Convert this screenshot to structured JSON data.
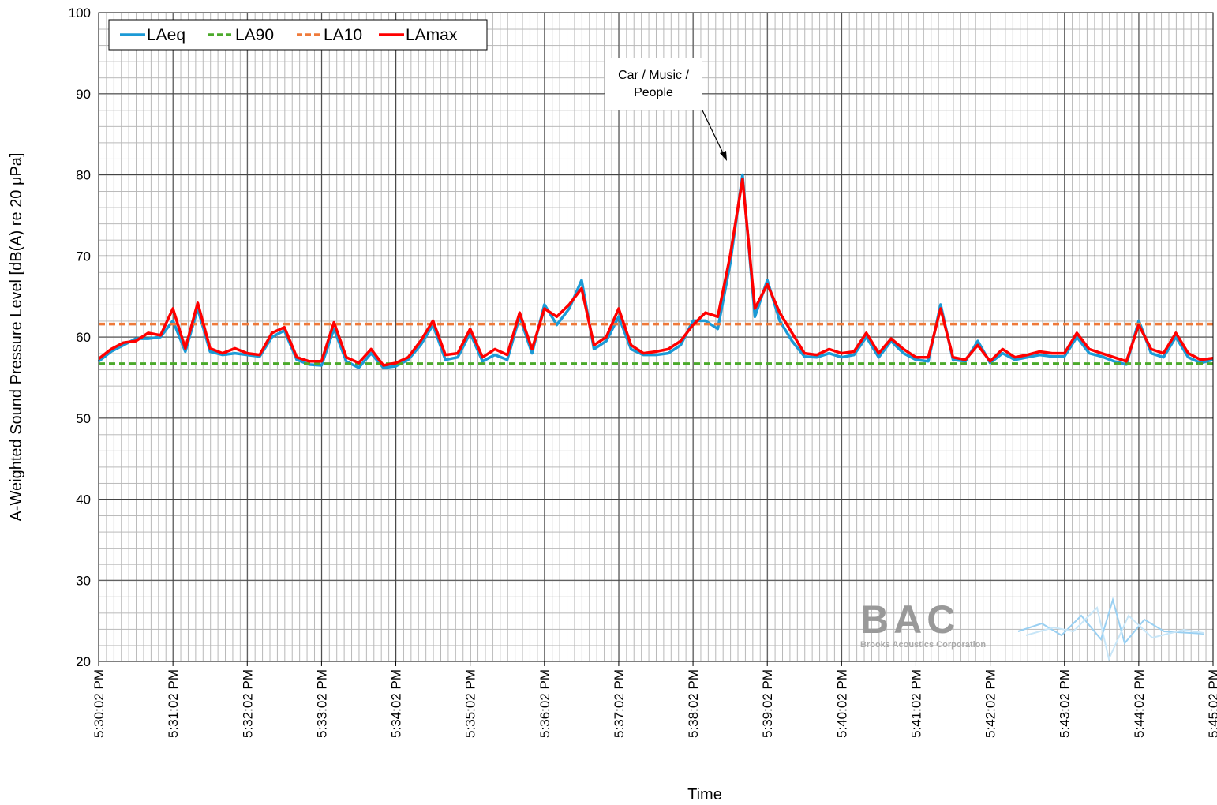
{
  "chart_data": {
    "type": "line",
    "xlabel": "Time",
    "ylabel": "A-Weighted Sound Pressure Level [dB(A) re 20 μPa]",
    "x": [
      "5:30:02 PM",
      "5:30:12 PM",
      "5:30:22 PM",
      "5:30:32 PM",
      "5:30:42 PM",
      "5:30:52 PM",
      "5:31:02 PM",
      "5:31:12 PM",
      "5:31:22 PM",
      "5:31:32 PM",
      "5:31:42 PM",
      "5:31:52 PM",
      "5:32:02 PM",
      "5:32:12 PM",
      "5:32:22 PM",
      "5:32:32 PM",
      "5:32:42 PM",
      "5:32:52 PM",
      "5:33:02 PM",
      "5:33:12 PM",
      "5:33:22 PM",
      "5:33:32 PM",
      "5:33:42 PM",
      "5:33:52 PM",
      "5:34:02 PM",
      "5:34:12 PM",
      "5:34:22 PM",
      "5:34:32 PM",
      "5:34:42 PM",
      "5:34:52 PM",
      "5:35:02 PM",
      "5:35:12 PM",
      "5:35:22 PM",
      "5:35:32 PM",
      "5:35:42 PM",
      "5:35:52 PM",
      "5:36:02 PM",
      "5:36:12 PM",
      "5:36:22 PM",
      "5:36:32 PM",
      "5:36:42 PM",
      "5:36:52 PM",
      "5:37:02 PM",
      "5:37:12 PM",
      "5:37:22 PM",
      "5:37:32 PM",
      "5:37:42 PM",
      "5:37:52 PM",
      "5:38:02 PM",
      "5:38:12 PM",
      "5:38:22 PM",
      "5:38:32 PM",
      "5:38:42 PM",
      "5:38:52 PM",
      "5:39:02 PM",
      "5:39:12 PM",
      "5:39:22 PM",
      "5:39:32 PM",
      "5:39:42 PM",
      "5:39:52 PM",
      "5:40:02 PM",
      "5:40:12 PM",
      "5:40:22 PM",
      "5:40:32 PM",
      "5:40:42 PM",
      "5:40:52 PM",
      "5:41:02 PM",
      "5:41:12 PM",
      "5:41:22 PM",
      "5:41:32 PM",
      "5:41:42 PM",
      "5:41:52 PM",
      "5:42:02 PM",
      "5:42:12 PM",
      "5:42:22 PM",
      "5:42:32 PM",
      "5:42:42 PM",
      "5:42:52 PM",
      "5:43:02 PM",
      "5:43:12 PM",
      "5:43:22 PM",
      "5:43:32 PM",
      "5:43:42 PM",
      "5:43:52 PM",
      "5:44:02 PM",
      "5:44:12 PM",
      "5:44:22 PM",
      "5:44:32 PM",
      "5:44:42 PM",
      "5:44:52 PM",
      "5:45:02 PM"
    ],
    "xticks": [
      "5:30:02 PM",
      "5:31:02 PM",
      "5:32:02 PM",
      "5:33:02 PM",
      "5:34:02 PM",
      "5:35:02 PM",
      "5:36:02 PM",
      "5:37:02 PM",
      "5:38:02 PM",
      "5:39:02 PM",
      "5:40:02 PM",
      "5:41:02 PM",
      "5:42:02 PM",
      "5:43:02 PM",
      "5:44:02 PM",
      "5:45:02 PM"
    ],
    "ylim": [
      20,
      100
    ],
    "yticks": [
      20,
      30,
      40,
      50,
      60,
      70,
      80,
      90,
      100
    ],
    "grid": true,
    "legend": "top-left",
    "series": [
      {
        "name": "LAeq",
        "color": "#1b9ad6",
        "dash": "solid",
        "values": [
          57.0,
          58.2,
          59.0,
          59.8,
          59.8,
          60.0,
          62.0,
          58.2,
          63.5,
          58.2,
          57.8,
          58.0,
          57.8,
          57.6,
          60.0,
          60.8,
          57.2,
          56.6,
          56.5,
          61.0,
          57.0,
          56.2,
          58.0,
          56.2,
          56.4,
          57.2,
          59.0,
          61.5,
          57.2,
          57.5,
          60.5,
          57.0,
          57.8,
          57.2,
          62.5,
          58.0,
          64.0,
          61.5,
          63.5,
          67.0,
          58.5,
          59.5,
          62.5,
          58.5,
          57.8,
          57.8,
          58.0,
          59.0,
          62.0,
          62.0,
          61.0,
          69.0,
          80.0,
          62.5,
          67.0,
          62.0,
          59.5,
          57.6,
          57.5,
          58.0,
          57.5,
          57.8,
          60.0,
          57.5,
          59.5,
          58.0,
          57.2,
          57.0,
          64.0,
          57.2,
          57.0,
          59.5,
          56.8,
          58.0,
          57.2,
          57.5,
          57.8,
          57.6,
          57.6,
          60.0,
          58.0,
          57.6,
          57.0,
          56.6,
          62.0,
          58.0,
          57.5,
          60.0,
          57.5,
          56.8,
          57.2
        ]
      },
      {
        "name": "LA90",
        "color": "#4caa2c",
        "dash": "dashed",
        "x": [
          "5:30:02 PM",
          "5:45:02 PM"
        ],
        "values": [
          56.7,
          56.7
        ]
      },
      {
        "name": "LA10",
        "color": "#ef7a3a",
        "dash": "dashed",
        "x": [
          "5:30:02 PM",
          "5:45:02 PM"
        ],
        "values": [
          61.6,
          61.6
        ]
      },
      {
        "name": "LAmax",
        "color": "#ff0000",
        "dash": "solid",
        "values": [
          57.3,
          58.5,
          59.3,
          59.5,
          60.5,
          60.2,
          63.5,
          58.6,
          64.2,
          58.6,
          58.0,
          58.6,
          58.0,
          57.8,
          60.5,
          61.2,
          57.5,
          57.0,
          57.0,
          61.8,
          57.5,
          56.8,
          58.5,
          56.5,
          56.8,
          57.5,
          59.5,
          62.0,
          57.8,
          58.0,
          61.0,
          57.5,
          58.5,
          57.8,
          63.0,
          58.5,
          63.5,
          62.5,
          64.0,
          66.0,
          59.0,
          60.0,
          63.5,
          59.0,
          58.0,
          58.2,
          58.5,
          59.5,
          61.5,
          63.0,
          62.5,
          70.0,
          79.5,
          63.5,
          66.5,
          63.0,
          60.5,
          58.0,
          57.8,
          58.5,
          58.0,
          58.2,
          60.5,
          58.0,
          59.8,
          58.5,
          57.5,
          57.5,
          63.5,
          57.5,
          57.2,
          59.0,
          57.0,
          58.5,
          57.5,
          57.8,
          58.2,
          58.0,
          58.0,
          60.5,
          58.5,
          58.0,
          57.5,
          57.0,
          61.5,
          58.5,
          58.0,
          60.5,
          58.0,
          57.2,
          57.4
        ]
      }
    ],
    "annotation": {
      "text": "Car / Music / People",
      "x": "5:38:42 PM",
      "y": 80
    },
    "logo": {
      "text": "BAC",
      "subtitle": "Brooks Acoustics Corporation"
    }
  }
}
